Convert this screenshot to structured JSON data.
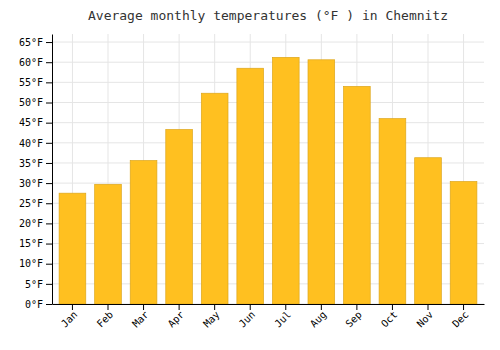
{
  "chart_data": {
    "type": "bar",
    "title": "Average monthly temperatures (°F ) in Chemnitz",
    "categories": [
      "Jan",
      "Feb",
      "Mar",
      "Apr",
      "May",
      "Jun",
      "Jul",
      "Aug",
      "Sep",
      "Oct",
      "Nov",
      "Dec"
    ],
    "values": [
      27.5,
      29.7,
      35.6,
      43.3,
      52.3,
      58.5,
      61.2,
      60.6,
      54.0,
      46.0,
      36.3,
      30.4
    ],
    "color": "#FFC020",
    "ylim": [
      0,
      67
    ],
    "yticks": [
      {
        "value": 0,
        "label": "0°F"
      },
      {
        "value": 5,
        "label": "5°F"
      },
      {
        "value": 10,
        "label": "10°F"
      },
      {
        "value": 15,
        "label": "15°F"
      },
      {
        "value": 20,
        "label": "20°F"
      },
      {
        "value": 25,
        "label": "25°F"
      },
      {
        "value": 30,
        "label": "30°F"
      },
      {
        "value": 35,
        "label": "35°F"
      },
      {
        "value": 40,
        "label": "40°F"
      },
      {
        "value": 45,
        "label": "45°F"
      },
      {
        "value": 50,
        "label": "50°F"
      },
      {
        "value": 55,
        "label": "55°F"
      },
      {
        "value": 60,
        "label": "60°F"
      },
      {
        "value": 65,
        "label": "65°F"
      }
    ],
    "grid": true
  }
}
